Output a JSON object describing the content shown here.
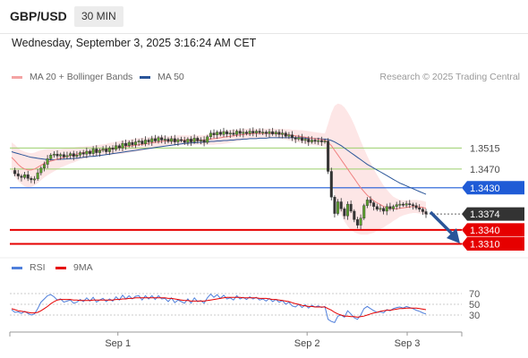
{
  "header": {
    "symbol": "GBP/USD",
    "timeframe": "30 MIN"
  },
  "datetime": "Wednesday, September 3, 2025 3:16:24 AM CET",
  "legend": {
    "ma20": {
      "label": "MA 20 + Bollinger Bands",
      "color": "#f08080"
    },
    "ma50": {
      "label": "MA 50",
      "color": "#2a5599"
    },
    "rsi": {
      "label": "RSI",
      "color": "#4f7fdb"
    },
    "ma9": {
      "label": "9MA",
      "color": "#e60000"
    }
  },
  "credit": "Research © 2025 Trading Central",
  "chart_data": {
    "type": "candlestick",
    "xlabels": [
      "Sep 1",
      "Sep 2",
      "Sep 3"
    ],
    "levels": [
      {
        "value": 1.3515,
        "label": "1.3515",
        "style": "pivot",
        "color": "#9bcf6b"
      },
      {
        "value": 1.347,
        "label": "1.3470",
        "style": "pivot",
        "color": "#9bcf6b"
      },
      {
        "value": 1.343,
        "label": "1.3430",
        "style": "resistance",
        "color": "#1f5bd6"
      },
      {
        "value": 1.3374,
        "label": "1.3374",
        "style": "last",
        "color": "#333333"
      },
      {
        "value": 1.334,
        "label": "1.3340",
        "style": "support",
        "color": "#e60000"
      },
      {
        "value": 1.331,
        "label": "1.3310",
        "style": "support",
        "color": "#e60000"
      }
    ],
    "price_range": [
      1.329,
      1.364
    ],
    "price_series": [
      1.3467,
      1.346,
      1.3455,
      1.3452,
      1.3458,
      1.345,
      1.3447,
      1.3449,
      1.3462,
      1.3472,
      1.348,
      1.3492,
      1.35,
      1.3502,
      1.3498,
      1.3501,
      1.3496,
      1.3499,
      1.3503,
      1.3497,
      1.35,
      1.3505,
      1.3502,
      1.3508,
      1.3503,
      1.3513,
      1.3505,
      1.351,
      1.3513,
      1.3507,
      1.3515,
      1.3512,
      1.352,
      1.3515,
      1.3525,
      1.352,
      1.3527,
      1.3522,
      1.3528,
      1.353,
      1.3524,
      1.3532,
      1.3528,
      1.3535,
      1.353,
      1.3537,
      1.3532,
      1.3534,
      1.3529,
      1.3535,
      1.3528,
      1.3533,
      1.3531,
      1.3527,
      1.3534,
      1.3528,
      1.3536,
      1.353,
      1.3532,
      1.3527,
      1.3539,
      1.3547,
      1.3543,
      1.3549,
      1.3544,
      1.355,
      1.3545,
      1.3547,
      1.3544,
      1.3551,
      1.3546,
      1.3549,
      1.3546,
      1.3551,
      1.3547,
      1.3551,
      1.3548,
      1.3549,
      1.3546,
      1.355,
      1.3545,
      1.3549,
      1.3544,
      1.3547,
      1.354,
      1.3543,
      1.3537,
      1.3534,
      1.3537,
      1.3531,
      1.3534,
      1.3528,
      1.3532,
      1.3529,
      1.3531,
      1.3528,
      1.353,
      1.3465,
      1.341,
      1.3375,
      1.34,
      1.3385,
      1.337,
      1.3395,
      1.338,
      1.3362,
      1.335,
      1.3365,
      1.3392,
      1.3404,
      1.3398,
      1.339,
      1.3384,
      1.3386,
      1.338,
      1.339,
      1.3385,
      1.339,
      1.3394,
      1.3395,
      1.3393,
      1.3396,
      1.3394,
      1.3392,
      1.3387,
      1.3384,
      1.3379,
      1.3374
    ],
    "ma20": [
      1.3495,
      1.3488,
      1.348,
      1.3474,
      1.347,
      1.3468,
      1.3468,
      1.347,
      1.3474,
      1.3478,
      1.3482,
      1.3485,
      1.3487,
      1.3489,
      1.3491,
      1.3493,
      1.3495,
      1.3497,
      1.3499,
      1.35,
      1.3502,
      1.3504,
      1.3505,
      1.3506,
      1.3507,
      1.3508,
      1.3509,
      1.351,
      1.3511,
      1.3512,
      1.3513,
      1.3514,
      1.3515,
      1.3516,
      1.3517,
      1.3518,
      1.3519,
      1.352,
      1.3521,
      1.3522,
      1.3523,
      1.3524,
      1.3525,
      1.3526,
      1.3527,
      1.3528,
      1.3529,
      1.353,
      1.353,
      1.3531,
      1.3531,
      1.3532,
      1.3532,
      1.3532,
      1.3532,
      1.3532,
      1.3532,
      1.3532,
      1.3532,
      1.3532,
      1.3533,
      1.3534,
      1.3535,
      1.3536,
      1.3537,
      1.3538,
      1.3539,
      1.354,
      1.3541,
      1.3542,
      1.3543,
      1.3544,
      1.3545,
      1.3545,
      1.3546,
      1.3546,
      1.3546,
      1.3546,
      1.3546,
      1.3546,
      1.3546,
      1.3546,
      1.3545,
      1.3545,
      1.3544,
      1.3543,
      1.3542,
      1.3541,
      1.354,
      1.3539,
      1.3538,
      1.3537,
      1.3536,
      1.3535,
      1.3534,
      1.3533,
      1.3532,
      1.3527,
      1.352,
      1.351,
      1.35,
      1.349,
      1.348,
      1.347,
      1.346,
      1.345,
      1.344,
      1.343,
      1.3422,
      1.3414,
      1.3408,
      1.3402,
      1.3398,
      1.3394,
      1.339,
      1.3388,
      1.3386,
      1.3385,
      1.3385,
      1.3386,
      1.3387,
      1.3388,
      1.3389,
      1.339,
      1.339,
      1.3389,
      1.3388,
      1.3386
    ],
    "ma50": [
      1.3507,
      1.3505,
      1.3503,
      1.3501,
      1.3499,
      1.3497,
      1.3495,
      1.3494,
      1.3493,
      1.3492,
      1.3491,
      1.349,
      1.349,
      1.349,
      1.349,
      1.3491,
      1.3491,
      1.3492,
      1.3492,
      1.3493,
      1.3493,
      1.3494,
      1.3495,
      1.3496,
      1.3497,
      1.3497,
      1.3498,
      1.3499,
      1.35,
      1.3501,
      1.3502,
      1.3503,
      1.3504,
      1.3505,
      1.3506,
      1.3507,
      1.3508,
      1.3509,
      1.351,
      1.3511,
      1.3512,
      1.3513,
      1.3514,
      1.3515,
      1.3516,
      1.3517,
      1.3518,
      1.3519,
      1.352,
      1.3521,
      1.3522,
      1.3523,
      1.3524,
      1.3525,
      1.3525,
      1.3526,
      1.3526,
      1.3527,
      1.3527,
      1.3528,
      1.3528,
      1.3529,
      1.3529,
      1.353,
      1.353,
      1.3531,
      1.3531,
      1.3532,
      1.3532,
      1.3533,
      1.3533,
      1.3534,
      1.3534,
      1.3535,
      1.3535,
      1.3535,
      1.3536,
      1.3536,
      1.3536,
      1.3537,
      1.3537,
      1.3537,
      1.3537,
      1.3537,
      1.3537,
      1.3537,
      1.3537,
      1.3537,
      1.3537,
      1.3537,
      1.3536,
      1.3536,
      1.3536,
      1.3535,
      1.3535,
      1.3534,
      1.3534,
      1.3533,
      1.3531,
      1.3528,
      1.3524,
      1.352,
      1.3515,
      1.351,
      1.3505,
      1.35,
      1.3495,
      1.349,
      1.3485,
      1.348,
      1.3476,
      1.3472,
      1.3468,
      1.3464,
      1.346,
      1.3456,
      1.3452,
      1.3448,
      1.3444,
      1.344,
      1.3437,
      1.3434,
      1.3431,
      1.3428,
      1.3425,
      1.3422,
      1.3419,
      1.3416
    ],
    "bb_width": [
      0.0032,
      0.0034,
      0.0035,
      0.0036,
      0.0037,
      0.0037,
      0.0036,
      0.0035,
      0.0034,
      0.0032,
      0.003,
      0.0028,
      0.0026,
      0.0024,
      0.0022,
      0.002,
      0.0019,
      0.0018,
      0.0017,
      0.0016,
      0.0015,
      0.0014,
      0.0013,
      0.0013,
      0.0012,
      0.0012,
      0.0012,
      0.0012,
      0.0012,
      0.0012,
      0.0013,
      0.0013,
      0.0013,
      0.0014,
      0.0014,
      0.0014,
      0.0014,
      0.0014,
      0.0014,
      0.0014,
      0.0014,
      0.0013,
      0.0013,
      0.0013,
      0.0012,
      0.0012,
      0.0011,
      0.0011,
      0.001,
      0.001,
      0.001,
      0.001,
      0.001,
      0.001,
      0.001,
      0.001,
      0.001,
      0.001,
      0.001,
      0.001,
      0.0011,
      0.0012,
      0.0013,
      0.0013,
      0.0014,
      0.0014,
      0.0014,
      0.0014,
      0.0013,
      0.0013,
      0.0012,
      0.0012,
      0.0011,
      0.0011,
      0.001,
      0.001,
      0.001,
      0.001,
      0.001,
      0.001,
      0.001,
      0.001,
      0.001,
      0.0011,
      0.0011,
      0.0012,
      0.0012,
      0.0013,
      0.0013,
      0.0014,
      0.0014,
      0.0014,
      0.0014,
      0.0014,
      0.0014,
      0.0014,
      0.0014,
      0.004,
      0.007,
      0.0095,
      0.011,
      0.0118,
      0.0122,
      0.0122,
      0.012,
      0.0115,
      0.0108,
      0.01,
      0.0092,
      0.0084,
      0.0076,
      0.0068,
      0.006,
      0.0052,
      0.0045,
      0.0038,
      0.0032,
      0.0026,
      0.0022,
      0.0018,
      0.0016,
      0.0015,
      0.0014,
      0.0014,
      0.0014,
      0.0014,
      0.0014,
      0.0014
    ],
    "rsi_range": [
      0,
      100
    ],
    "rsi_levels": [
      70,
      50,
      30
    ],
    "rsi": [
      40,
      35,
      36,
      33,
      37,
      33,
      30,
      32,
      42,
      54,
      60,
      66,
      68,
      64,
      58,
      60,
      54,
      56,
      58,
      52,
      54,
      59,
      55,
      62,
      56,
      63,
      54,
      58,
      61,
      55,
      60,
      56,
      64,
      58,
      67,
      60,
      66,
      60,
      65,
      66,
      58,
      66,
      60,
      66,
      59,
      66,
      60,
      61,
      55,
      62,
      53,
      58,
      55,
      52,
      60,
      52,
      62,
      55,
      57,
      52,
      62,
      69,
      63,
      68,
      61,
      67,
      60,
      62,
      58,
      66,
      60,
      63,
      59,
      64,
      60,
      63,
      58,
      60,
      56,
      61,
      55,
      59,
      54,
      57,
      50,
      54,
      47,
      45,
      50,
      44,
      49,
      43,
      48,
      45,
      47,
      44,
      46,
      22,
      18,
      16,
      28,
      30,
      26,
      38,
      32,
      25,
      22,
      30,
      42,
      46,
      42,
      38,
      35,
      36,
      34,
      40,
      38,
      42,
      44,
      45,
      43,
      46,
      44,
      42,
      39,
      37,
      34,
      32
    ],
    "ma9": [
      42,
      40,
      38,
      37,
      36,
      35,
      34,
      34,
      35,
      38,
      42,
      46,
      51,
      55,
      58,
      59,
      59,
      59,
      59,
      58,
      58,
      57,
      57,
      57,
      57,
      58,
      58,
      58,
      58,
      58,
      58,
      58,
      59,
      59,
      60,
      60,
      61,
      61,
      62,
      62,
      62,
      62,
      62,
      62,
      62,
      62,
      62,
      62,
      61,
      61,
      60,
      59,
      58,
      57,
      57,
      56,
      56,
      56,
      56,
      56,
      57,
      58,
      59,
      60,
      61,
      62,
      63,
      63,
      63,
      63,
      63,
      62,
      62,
      62,
      62,
      62,
      61,
      61,
      61,
      60,
      59,
      59,
      58,
      57,
      56,
      55,
      53,
      51,
      50,
      48,
      47,
      46,
      46,
      45,
      45,
      45,
      45,
      42,
      39,
      35,
      32,
      30,
      28,
      28,
      27,
      27,
      26,
      27,
      28,
      30,
      32,
      34,
      35,
      37,
      38,
      39,
      39,
      40,
      41,
      42,
      42,
      43,
      43,
      43,
      43,
      42,
      41,
      40
    ]
  }
}
